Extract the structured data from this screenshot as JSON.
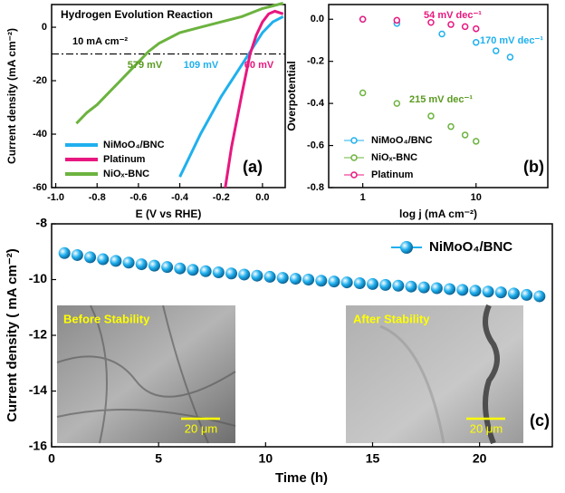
{
  "chart_data": [
    {
      "type": "line",
      "title": "Hydrogen Evolution Reaction",
      "x_label": "E (V vs RHE)",
      "y_label": "Current density (mA cm⁻²)",
      "xlim": [
        -1.02,
        0.11
      ],
      "xticks": [
        {
          "value": -1.0,
          "label": "-1.0"
        },
        -0.8,
        -0.6,
        -0.4,
        -0.2,
        {
          "value": 0.0,
          "label": "0.0"
        }
      ],
      "ylim": [
        -60,
        8.5
      ],
      "yticks": [
        -60,
        -40,
        -20,
        0
      ],
      "reference_y": -10,
      "annotations": [
        "10 mA cm⁻²",
        "579 mV",
        "109 mV",
        "60 mV",
        "(a)"
      ],
      "legend": "lower left",
      "series": [
        {
          "name": "NiMoO₄/BNC",
          "color": "#1fb0ee",
          "x": [
            -0.4,
            -0.3,
            -0.2,
            -0.1,
            -0.05,
            0,
            0.05,
            0.1
          ],
          "values": [
            -56,
            -40,
            -26,
            -14,
            -8,
            -2,
            2,
            4
          ]
        },
        {
          "name": "Platinum",
          "color": "#e8177f",
          "x": [
            -0.18,
            -0.15,
            -0.1,
            -0.06,
            -0.03,
            0,
            0.03,
            0.06,
            0.1
          ],
          "values": [
            -60,
            -45,
            -25,
            -10,
            -3,
            2,
            5,
            6,
            5
          ]
        },
        {
          "name": "NiOₓ-BNC",
          "color": "#6cb33f",
          "x": [
            -0.9,
            -0.85,
            -0.8,
            -0.75,
            -0.7,
            -0.65,
            -0.6,
            -0.55,
            -0.5,
            -0.4,
            -0.3,
            -0.2,
            -0.1,
            0,
            0.05,
            0.1
          ],
          "values": [
            -36,
            -32,
            -29,
            -25,
            -21,
            -17,
            -13,
            -9,
            -6,
            -2,
            0,
            2,
            4,
            7,
            8,
            9
          ]
        }
      ]
    },
    {
      "type": "scatter",
      "x_label": "log j (mA cm⁻²)",
      "y_label": "Overpotential",
      "xscale": "log",
      "xlim": [
        0.5,
        43
      ],
      "xticks": [
        1,
        10
      ],
      "ylim": [
        -0.8,
        0.07
      ],
      "yticks": [
        -0.8,
        -0.6,
        -0.4,
        -0.2,
        {
          "value": 0.0,
          "label": "0.0"
        }
      ],
      "annotations": [
        "54 mV dec⁻¹",
        "170 mV dec⁻¹",
        "215 mV dec⁻¹",
        "(b)"
      ],
      "legend": "lower left",
      "series": [
        {
          "name": "NiMoO₄/BNC",
          "color": "#1fb0ee",
          "x": [
            1,
            2,
            5,
            10,
            15,
            20
          ],
          "values": [
            0,
            -0.02,
            -0.07,
            -0.11,
            -0.15,
            -0.18
          ]
        },
        {
          "name": "NiOₓ-BNC",
          "color": "#6cb33f",
          "x": [
            1,
            2,
            4,
            6,
            8,
            10
          ],
          "values": [
            -0.35,
            -0.4,
            -0.46,
            -0.51,
            -0.55,
            -0.58
          ]
        },
        {
          "name": "Platinum",
          "color": "#e8177f",
          "x": [
            1,
            2,
            4,
            6,
            8,
            10
          ],
          "values": [
            0,
            -0.005,
            -0.015,
            -0.025,
            -0.035,
            -0.045
          ]
        }
      ]
    },
    {
      "type": "scatter",
      "x_label": "Time (h)",
      "y_label": "Current density ( mA cm⁻²)",
      "xlim": [
        0,
        23.4
      ],
      "xticks": [
        0,
        5,
        10,
        15,
        20
      ],
      "ylim": [
        -16,
        -8
      ],
      "yticks": [
        -16,
        -14,
        -12,
        -10,
        -8
      ],
      "annotations": [
        "(c)"
      ],
      "insets": [
        "Before Stability",
        "After Stability"
      ],
      "scale_bar": "20 μm",
      "legend": "upper right",
      "series": [
        {
          "name": "NiMoO₄/BNC",
          "color": "#1fb0ee",
          "x": [
            0.6,
            1.2,
            1.8,
            2.4,
            3.0,
            3.6,
            4.2,
            4.8,
            5.4,
            6.0,
            6.6,
            7.2,
            7.8,
            8.4,
            9.0,
            9.6,
            10.2,
            10.8,
            11.4,
            12.0,
            12.6,
            13.2,
            13.8,
            14.4,
            15.0,
            15.6,
            16.2,
            16.8,
            17.4,
            18.0,
            18.6,
            19.2,
            19.8,
            20.4,
            21.0,
            21.6,
            22.2,
            22.8
          ],
          "values": [
            -9.05,
            -9.12,
            -9.2,
            -9.27,
            -9.33,
            -9.39,
            -9.45,
            -9.5,
            -9.55,
            -9.6,
            -9.65,
            -9.7,
            -9.74,
            -9.78,
            -9.82,
            -9.86,
            -9.9,
            -9.94,
            -9.97,
            -10.0,
            -10.04,
            -10.07,
            -10.1,
            -10.13,
            -10.16,
            -10.19,
            -10.22,
            -10.25,
            -10.28,
            -10.31,
            -10.34,
            -10.37,
            -10.4,
            -10.43,
            -10.46,
            -10.5,
            -10.55,
            -10.6
          ]
        }
      ]
    }
  ]
}
